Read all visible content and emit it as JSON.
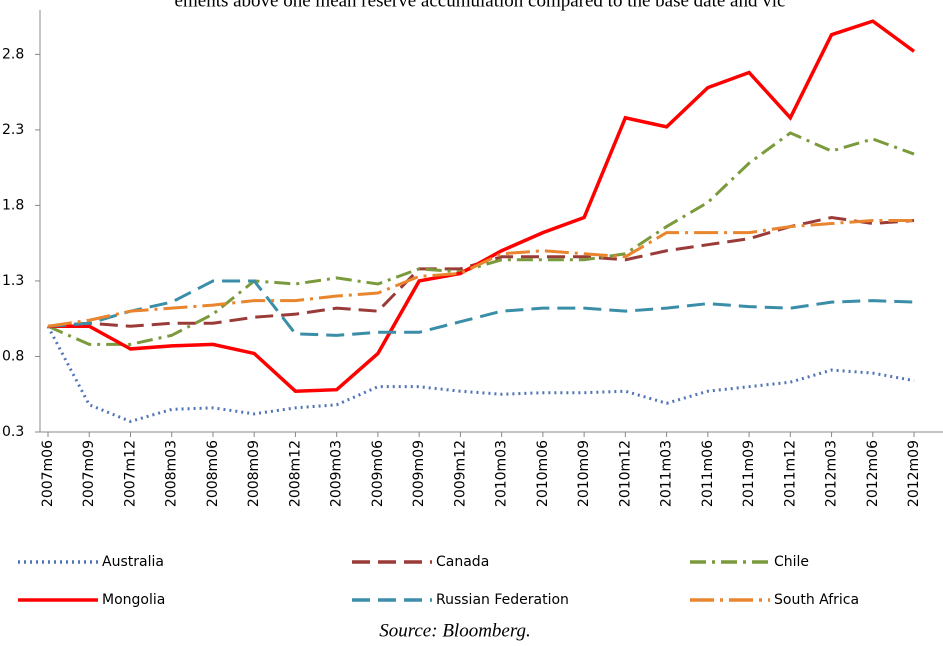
{
  "chart_data": {
    "type": "line",
    "title": "ements above one mean reserve accumulation compared to the base date and vic",
    "source": "Source: Bloomberg.",
    "categories": [
      "2007m06",
      "2007m09",
      "2007m12",
      "2008m03",
      "2008m06",
      "2008m09",
      "2008m12",
      "2009m03",
      "2009m06",
      "2009m09",
      "2009m12",
      "2010m03",
      "2010m06",
      "2010m09",
      "2010m12",
      "2011m03",
      "2011m06",
      "2011m09",
      "2011m12",
      "2012m03",
      "2012m06",
      "2012m09"
    ],
    "ylim": [
      0.3,
      3.16
    ],
    "yticks": [
      0.3,
      0.8,
      1.3,
      1.8,
      2.3,
      2.8
    ],
    "grid": false,
    "series": [
      {
        "name": "Australia",
        "color": "#4f74b8",
        "dash": "2,4",
        "values": [
          1.0,
          0.48,
          0.37,
          0.45,
          0.46,
          0.42,
          0.46,
          0.48,
          0.6,
          0.6,
          0.57,
          0.55,
          0.56,
          0.56,
          0.57,
          0.49,
          0.57,
          0.6,
          0.63,
          0.71,
          0.69,
          0.64
        ]
      },
      {
        "name": "Canada",
        "color": "#9b3b38",
        "dash": "18,8",
        "values": [
          1.0,
          1.02,
          1.0,
          1.02,
          1.02,
          1.06,
          1.08,
          1.12,
          1.1,
          1.38,
          1.38,
          1.46,
          1.46,
          1.46,
          1.44,
          1.5,
          1.54,
          1.58,
          1.66,
          1.72,
          1.68,
          1.7
        ]
      },
      {
        "name": "Chile",
        "color": "#7a9a3c",
        "dash": "16,6,3,6",
        "values": [
          1.0,
          0.88,
          0.88,
          0.94,
          1.08,
          1.3,
          1.28,
          1.32,
          1.28,
          1.38,
          1.36,
          1.44,
          1.44,
          1.44,
          1.48,
          1.66,
          1.82,
          2.08,
          2.28,
          2.16,
          2.24,
          2.14
        ]
      },
      {
        "name": "Mongolia",
        "color": "#ff0000",
        "dash": "none",
        "values": [
          1.0,
          1.0,
          0.85,
          0.87,
          0.88,
          0.82,
          0.57,
          0.58,
          0.82,
          1.3,
          1.35,
          1.5,
          1.62,
          1.72,
          2.38,
          2.32,
          2.58,
          2.68,
          2.38,
          2.93,
          3.02,
          2.82
        ]
      },
      {
        "name": "Russian Federation",
        "color": "#3a8ea8",
        "dash": "18,8",
        "values": [
          1.0,
          1.02,
          1.1,
          1.16,
          1.3,
          1.3,
          0.95,
          0.94,
          0.96,
          0.96,
          1.03,
          1.1,
          1.12,
          1.12,
          1.1,
          1.12,
          1.15,
          1.13,
          1.12,
          1.16,
          1.17,
          1.16
        ]
      },
      {
        "name": "South Africa",
        "color": "#e8852e",
        "dash": "24,6,3,6",
        "values": [
          1.0,
          1.04,
          1.1,
          1.12,
          1.14,
          1.17,
          1.17,
          1.2,
          1.22,
          1.33,
          1.35,
          1.48,
          1.5,
          1.48,
          1.46,
          1.62,
          1.62,
          1.62,
          1.66,
          1.68,
          1.7,
          1.7
        ]
      }
    ]
  }
}
